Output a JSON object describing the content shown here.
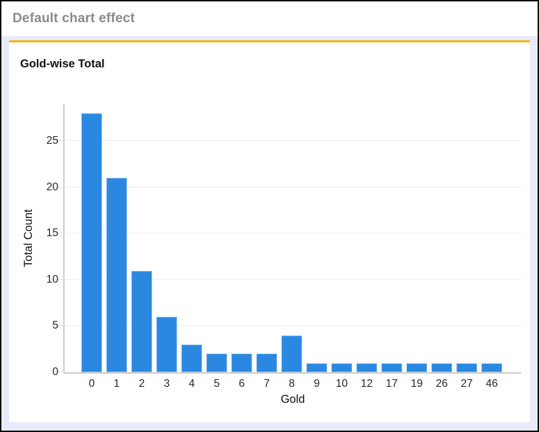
{
  "header": {
    "title": "Default chart effect"
  },
  "colors": {
    "accent": "#f9b115",
    "body_bg": "#e7eaf8",
    "header_text": "#8a8a8a",
    "bar": "#2b88e0",
    "grid": "#ededed",
    "axis": "#cccccc"
  },
  "chart_data": {
    "type": "bar",
    "title": "Gold-wise Total",
    "xlabel": "Gold",
    "ylabel": "Total Count",
    "categories": [
      "0",
      "1",
      "2",
      "3",
      "4",
      "5",
      "6",
      "7",
      "8",
      "9",
      "10",
      "12",
      "17",
      "19",
      "26",
      "27",
      "46"
    ],
    "values": [
      28,
      21,
      11,
      6,
      3,
      2,
      2,
      2,
      4,
      1,
      1,
      1,
      1,
      1,
      1,
      1,
      1
    ],
    "yticks": [
      0,
      5,
      10,
      15,
      20,
      25
    ],
    "ylim": [
      0,
      29
    ],
    "grid": "horizontal",
    "legend": "none",
    "bar_color": "#2b88e0"
  }
}
